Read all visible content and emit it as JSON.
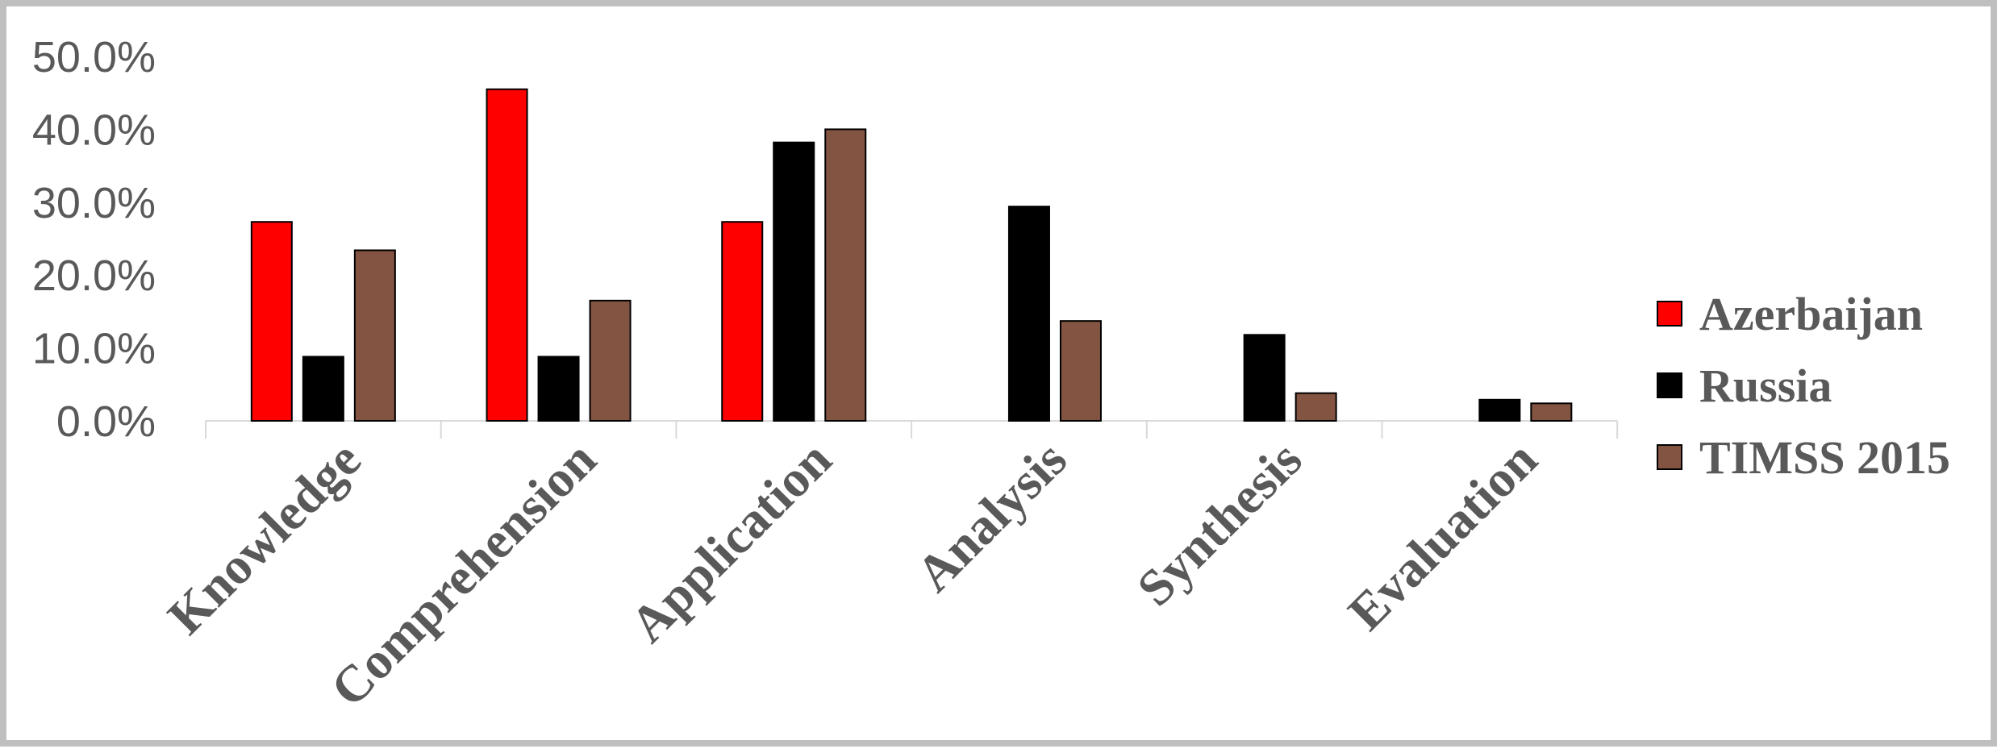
{
  "chart_data": {
    "type": "bar",
    "title": "",
    "xlabel": "",
    "ylabel": "",
    "categories": [
      "Knowledge",
      "Comprehension",
      "Application",
      "Analysis",
      "Synthesis",
      "Evaluation"
    ],
    "series": [
      {
        "name": "Azerbaijan",
        "color": "#ff0000",
        "values": [
          27.3,
          45.5,
          27.3,
          0,
          0,
          0
        ]
      },
      {
        "name": "Russia",
        "color": "#000000",
        "values": [
          8.8,
          8.8,
          38.2,
          29.4,
          11.8,
          2.9
        ]
      },
      {
        "name": "TIMSS 2015",
        "color": "#845442",
        "values": [
          23.4,
          16.5,
          40.0,
          13.7,
          3.8,
          2.4
        ]
      }
    ],
    "ylim": [
      0,
      50
    ],
    "yticks": [
      "0.0%",
      "10.0%",
      "20.0%",
      "30.0%",
      "40.0%",
      "50.0%"
    ],
    "ytick_values": [
      0,
      10,
      20,
      30,
      40,
      50
    ],
    "grid": false,
    "legend_position": "right",
    "bar_outline_color": "#000000",
    "axis_color": "#d9d9d9",
    "frame_color": "#bfbfbf"
  }
}
